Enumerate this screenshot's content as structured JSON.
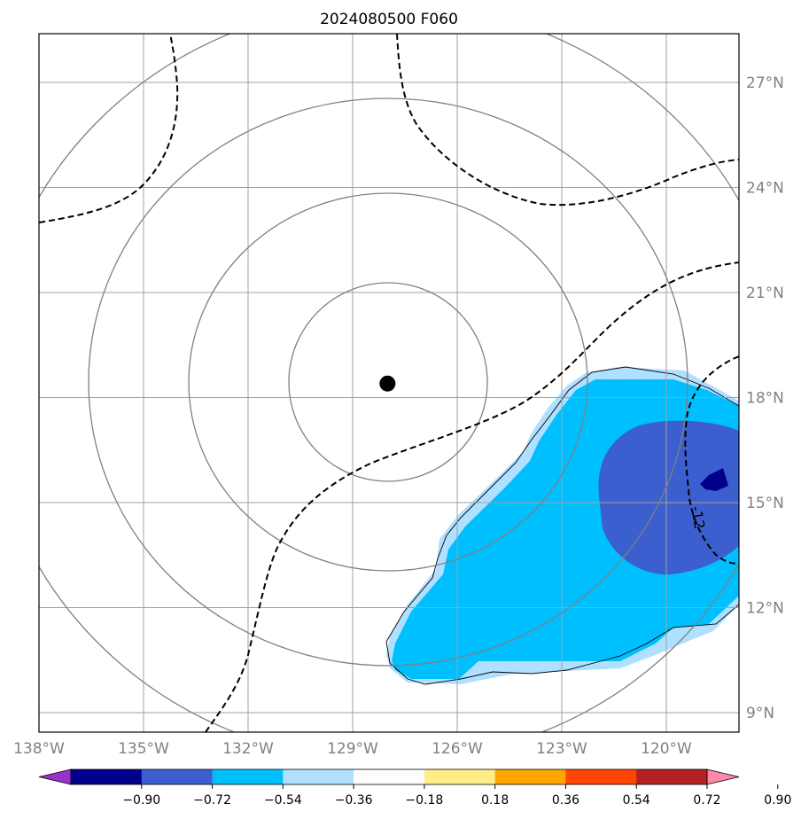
{
  "title": "2024080500 F060",
  "map": {
    "lon_ticks": [
      {
        "lon": -138,
        "label": "138°W"
      },
      {
        "lon": -135,
        "label": "135°W"
      },
      {
        "lon": -132,
        "label": "132°W"
      },
      {
        "lon": -129,
        "label": "129°W"
      },
      {
        "lon": -126,
        "label": "126°W"
      },
      {
        "lon": -123,
        "label": "123°W"
      },
      {
        "lon": -120,
        "label": "120°W"
      }
    ],
    "lat_ticks": [
      {
        "lat": 9,
        "label": "9°N"
      },
      {
        "lat": 12,
        "label": "12°N"
      },
      {
        "lat": 15,
        "label": "15°N"
      },
      {
        "lat": 18,
        "label": "18°N"
      },
      {
        "lat": 21,
        "label": "21°N"
      },
      {
        "lat": 24,
        "label": "24°N"
      },
      {
        "lat": 27,
        "label": "27°N"
      }
    ],
    "center_marker": {
      "lon": -128,
      "lat": 18.4
    },
    "contour_label": "-12"
  },
  "colorbar": {
    "ticks": [
      "−0.90",
      "−0.72",
      "−0.54",
      "−0.36",
      "−0.18",
      "0.18",
      "0.36",
      "0.54",
      "0.72",
      "0.90"
    ],
    "colors": [
      "#9932cc",
      "#00008b",
      "#3b5fcf",
      "#00bfff",
      "#b0e0ff",
      "#ffffff",
      "#ffee88",
      "#ffa500",
      "#ff4500",
      "#b22222",
      "#ff88aa"
    ]
  },
  "colors": {
    "grid": "#a0a0a0",
    "rings": "#808080",
    "fill_light": "#b0e0ff",
    "fill_mid": "#00bfff",
    "fill_dark": "#3b5fcf",
    "fill_darkest": "#00008b"
  }
}
